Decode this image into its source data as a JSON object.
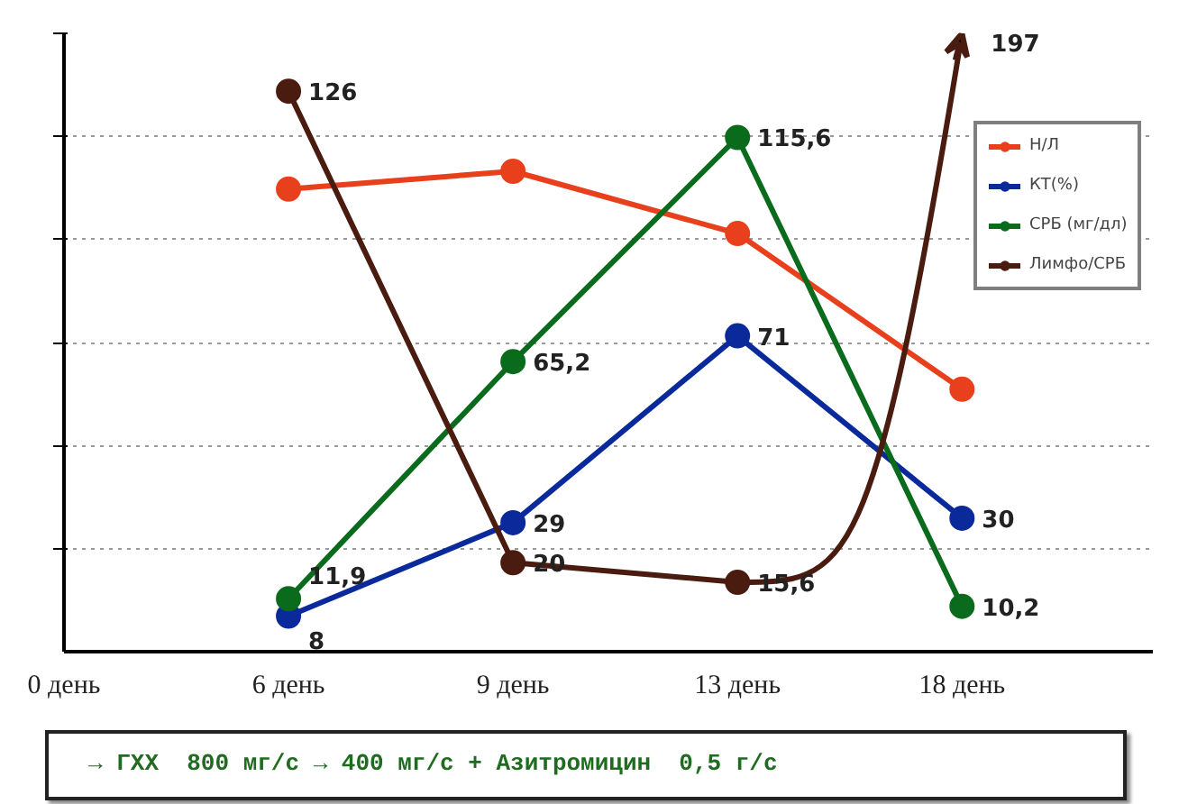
{
  "chart_data": {
    "type": "line",
    "categories": [
      "0 день",
      "6 день",
      "9 день",
      "13 день",
      "18 день"
    ],
    "ylim": [
      0,
      139
    ],
    "yticks": [
      {
        "value": 23.2,
        "label": null
      },
      {
        "value": 46.3,
        "label": null
      },
      {
        "value": 69.5,
        "label": null
      },
      {
        "value": 92.7,
        "label": null
      },
      {
        "value": 115.8,
        "label": null
      },
      {
        "value": 139,
        "label": null
      }
    ],
    "series": [
      {
        "name": "Н/Л",
        "color": "#e8401c",
        "values": [
          null,
          104,
          108,
          94,
          59
        ]
      },
      {
        "name": "КТ(%)",
        "color": "#0a2a9c",
        "values": [
          null,
          8,
          29,
          71,
          30
        ],
        "value_labels": [
          null,
          "8",
          "29",
          "71",
          "30"
        ]
      },
      {
        "name": "СРБ (мг/дл)",
        "color": "#0b6b1c",
        "values": [
          null,
          11.9,
          65.2,
          115.6,
          10.2
        ],
        "value_labels": [
          null,
          "11,9",
          "65,2",
          "115,6",
          "10,2"
        ]
      },
      {
        "name": "Лимфо/СРБ",
        "color": "#4a1c10",
        "values": [
          null,
          126,
          20,
          15.6,
          null
        ],
        "value_labels": [
          null,
          "126",
          "20",
          "15,6",
          null
        ]
      }
    ],
    "marker": "circle",
    "line_style": "solid",
    "grid": "y",
    "legend": "top right",
    "annotations": [
      "197",
      "→ ГХХ  800 мг/с → 400 мг/с + Азитромицин  0,5 г/с"
    ]
  }
}
